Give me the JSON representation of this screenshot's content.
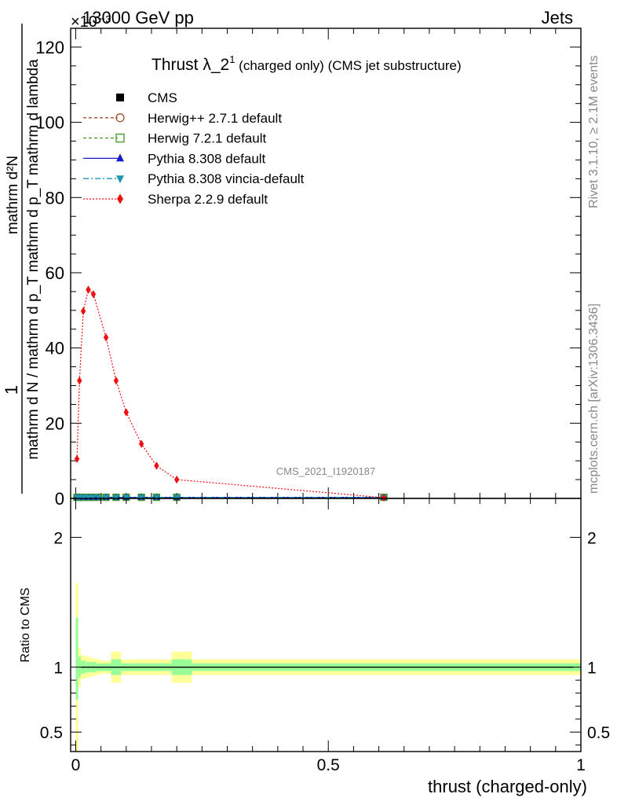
{
  "header": {
    "energy_label": "13000 GeV pp",
    "process_label": "Jets",
    "exponent_label": "×10⁻³"
  },
  "side_labels": {
    "rivet": "Rivet 3.1.10, ≥ 2.1M events",
    "mcplots": "mcplots.cern.ch [arXiv:1306.3436]"
  },
  "watermark": "CMS_2021_I1920187",
  "chart_data": [
    {
      "type": "line",
      "title_main": "Thrust λ_2",
      "title_sup": "1",
      "title_rest": " (charged only) (CMS jet substructure)",
      "ylabel_num": "1",
      "ylabel_den": "mathrm d N / mathrm d p_T mathrm d p_T mathrm d lambda",
      "ylabel_top": "mathrm d²N",
      "xlim": [
        -0.01,
        1.0
      ],
      "ylim": [
        0,
        125
      ],
      "y_scale_note": "×10⁻³",
      "yticks": [
        0,
        20,
        40,
        60,
        80,
        100,
        120
      ],
      "yticklabels": [
        "0",
        "20",
        "40",
        "60",
        "80",
        "100",
        "120"
      ],
      "legend_position": "top-left",
      "series": [
        {
          "name": "CMS",
          "color": "#000000",
          "marker": "square",
          "x": [
            0.0025,
            0.0075,
            0.015,
            0.025,
            0.035,
            0.045,
            0.06,
            0.08,
            0.1,
            0.13,
            0.16,
            0.2,
            0.61
          ],
          "y": [
            0.3,
            0.3,
            0.3,
            0.3,
            0.3,
            0.3,
            0.3,
            0.3,
            0.3,
            0.3,
            0.3,
            0.3,
            0.3
          ]
        },
        {
          "name": "Herwig++ 2.7.1 default",
          "color": "#a0522d",
          "marker": "circle-open",
          "dash": "4,3",
          "x": [
            0.0025,
            0.0075,
            0.015,
            0.025,
            0.035,
            0.045,
            0.06,
            0.08,
            0.1,
            0.13,
            0.16,
            0.2,
            0.61
          ],
          "y": [
            0.3,
            0.3,
            0.3,
            0.3,
            0.3,
            0.3,
            0.3,
            0.3,
            0.3,
            0.3,
            0.3,
            0.3,
            0.3
          ]
        },
        {
          "name": "Herwig 7.2.1 default",
          "color": "#3a9a1c",
          "marker": "square-open",
          "dash": "4,3",
          "x": [
            0.0025,
            0.0075,
            0.015,
            0.025,
            0.035,
            0.045,
            0.06,
            0.08,
            0.1,
            0.13,
            0.16,
            0.2,
            0.61
          ],
          "y": [
            0.3,
            0.3,
            0.3,
            0.3,
            0.3,
            0.3,
            0.3,
            0.3,
            0.3,
            0.3,
            0.3,
            0.3,
            0.3
          ]
        },
        {
          "name": "Pythia 8.308 default",
          "color": "#1a1acd",
          "marker": "triangle-up",
          "x": [
            0.0025,
            0.0075,
            0.015,
            0.025,
            0.035,
            0.045,
            0.06,
            0.08,
            0.1,
            0.13,
            0.16,
            0.2,
            0.61
          ],
          "y": [
            0.3,
            0.3,
            0.3,
            0.3,
            0.3,
            0.3,
            0.3,
            0.3,
            0.3,
            0.3,
            0.3,
            0.3,
            0.3
          ]
        },
        {
          "name": "Pythia 8.308 vincia-default",
          "color": "#1e96b4",
          "marker": "triangle-down",
          "dash": "7,3,2,3",
          "x": [
            0.0025,
            0.0075,
            0.015,
            0.025,
            0.035,
            0.045,
            0.06,
            0.08,
            0.1,
            0.13,
            0.16,
            0.2,
            0.61
          ],
          "y": [
            0.3,
            0.3,
            0.3,
            0.3,
            0.3,
            0.3,
            0.3,
            0.3,
            0.3,
            0.3,
            0.3,
            0.3,
            0.3
          ]
        },
        {
          "name": "Sherpa 2.2.9 default",
          "color": "#ee1111",
          "marker": "diamond",
          "dash": "2,2",
          "x": [
            0.0025,
            0.0075,
            0.015,
            0.025,
            0.035,
            0.06,
            0.08,
            0.1,
            0.13,
            0.16,
            0.2,
            0.61
          ],
          "y": [
            10.5,
            31.3,
            49.8,
            55.5,
            54.3,
            42.8,
            31.3,
            22.9,
            14.5,
            8.7,
            5.0,
            0.2
          ],
          "x_peak_note": "peak near 0.025"
        }
      ]
    },
    {
      "type": "area",
      "ylabel": "Ratio to CMS",
      "xlabel": "thrust (charged-only)",
      "xlim": [
        -0.01,
        1.0
      ],
      "ylim": [
        0.35,
        2.3
      ],
      "xticks": [
        0,
        0.5,
        1
      ],
      "xticklabels": [
        "0",
        "0.5",
        "1"
      ],
      "yticks": [
        0.5,
        1,
        2
      ],
      "yticklabels": [
        "0.5",
        "1",
        "2"
      ],
      "reference_line": 1,
      "bins": [
        0,
        0.005,
        0.01,
        0.02,
        0.03,
        0.04,
        0.05,
        0.07,
        0.09,
        0.11,
        0.15,
        0.19,
        0.23,
        1.0
      ],
      "band_outer": {
        "color": "#ffff99",
        "low": [
          0.35,
          0.85,
          0.91,
          0.92,
          0.93,
          0.94,
          0.95,
          0.88,
          0.94,
          0.94,
          0.94,
          0.88,
          0.94
        ],
        "high": [
          1.65,
          1.15,
          1.09,
          1.08,
          1.07,
          1.06,
          1.05,
          1.12,
          1.06,
          1.06,
          1.06,
          1.12,
          1.06
        ]
      },
      "band_inner": {
        "color": "#99ff99",
        "low": [
          0.75,
          0.92,
          0.95,
          0.96,
          0.96,
          0.97,
          0.97,
          0.94,
          0.97,
          0.97,
          0.97,
          0.94,
          0.97
        ],
        "high": [
          1.38,
          1.08,
          1.05,
          1.04,
          1.04,
          1.03,
          1.03,
          1.06,
          1.03,
          1.03,
          1.03,
          1.06,
          1.03
        ]
      }
    }
  ]
}
